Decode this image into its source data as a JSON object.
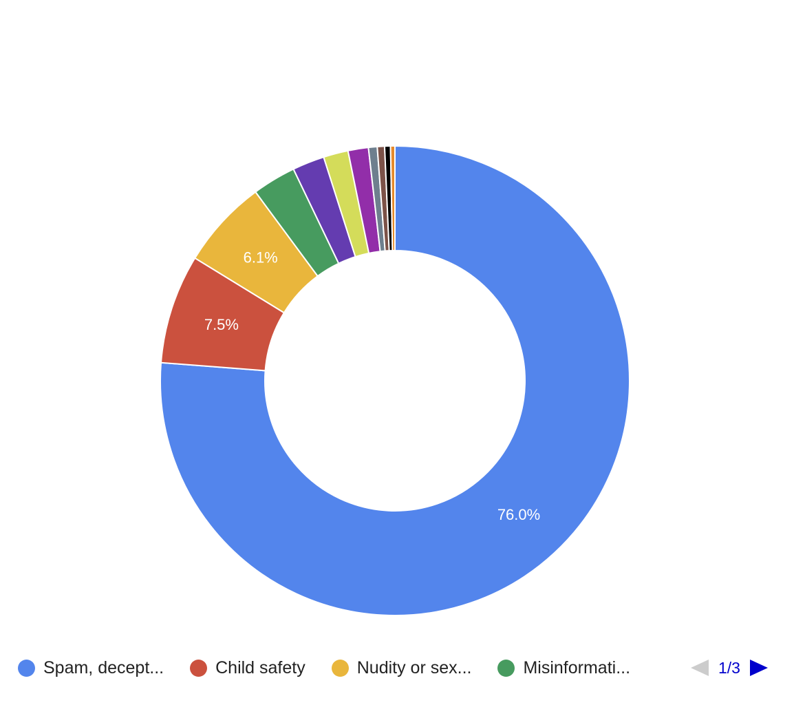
{
  "chart_data": {
    "type": "pie",
    "hole": "donut",
    "slices": [
      {
        "label": "Spam, decept...",
        "value": 76.0,
        "color": "#5385EC",
        "data_label": "76.0%"
      },
      {
        "label": "Child safety",
        "value": 7.5,
        "color": "#CB513E",
        "data_label": "7.5%"
      },
      {
        "label": "Nudity or sex...",
        "value": 6.1,
        "color": "#E9B63C",
        "data_label": "6.1%"
      },
      {
        "label": "Misinformati...",
        "value": 3.0,
        "color": "#479B5F",
        "data_label": ""
      },
      {
        "label": "",
        "value": 2.2,
        "color": "#643CB0",
        "data_label": ""
      },
      {
        "label": "",
        "value": 1.7,
        "color": "#D4DC5A",
        "data_label": ""
      },
      {
        "label": "",
        "value": 1.4,
        "color": "#922EA9",
        "data_label": ""
      },
      {
        "label": "",
        "value": 0.6,
        "color": "#6E7F8E",
        "data_label": ""
      },
      {
        "label": "",
        "value": 0.5,
        "color": "#7C5248",
        "data_label": ""
      },
      {
        "label": "",
        "value": 0.4,
        "color": "#000000",
        "data_label": ""
      },
      {
        "label": "",
        "value": 0.3,
        "color": "#E58A2B",
        "data_label": ""
      }
    ],
    "legend_position": "bottom"
  },
  "legend": {
    "items": [
      {
        "label": "Spam, decept...",
        "color": "#5385EC"
      },
      {
        "label": "Child safety",
        "color": "#CB513E"
      },
      {
        "label": "Nudity or sex...",
        "color": "#E9B63C"
      },
      {
        "label": "Misinformati...",
        "color": "#479B5F"
      }
    ],
    "page_text": "1/3",
    "prev_color": "#CCCCCC",
    "next_color": "#0000CC"
  }
}
